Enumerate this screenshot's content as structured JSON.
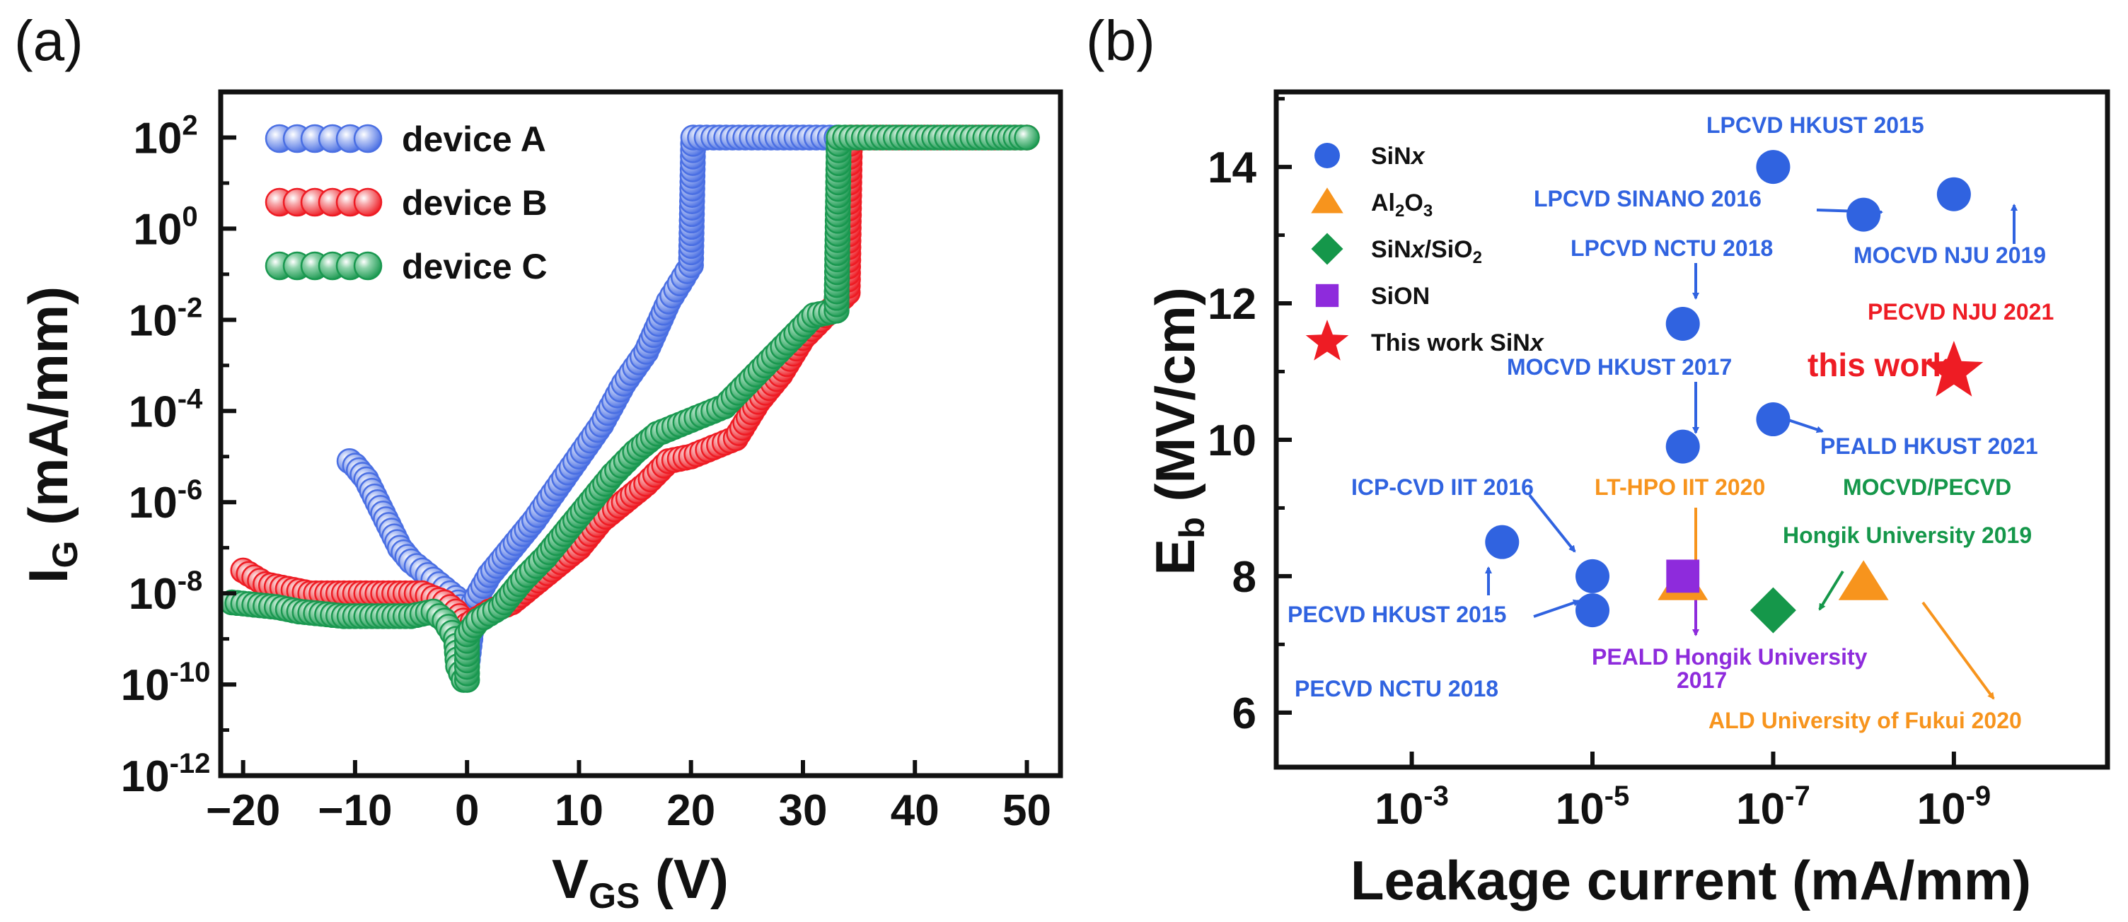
{
  "colors": {
    "device_a": "#4a6fe3",
    "device_b": "#ee1c24",
    "device_c": "#1a9850",
    "sinx": "#3063e0",
    "al2o3": "#f7941d",
    "sinx_sio2": "#15974a",
    "sion": "#8e2bdc",
    "this_work": "#ee1c24",
    "axis": "#111111"
  },
  "chart_data": [
    {
      "panel": "(a)",
      "type": "line",
      "xlabel": {
        "main": "V",
        "sub": "GS",
        "rest": " (V)"
      },
      "ylabel": {
        "main": "I",
        "sub": "G",
        "rest": " (mA/mm)"
      },
      "xlim": [
        -22,
        53
      ],
      "ylim_log10": [
        -12,
        3
      ],
      "yscale": "log",
      "x_ticks": [
        "−20",
        "−10",
        "0",
        "10",
        "20",
        "30",
        "40",
        "50"
      ],
      "x_tick_values": [
        -20,
        -10,
        0,
        10,
        20,
        30,
        40,
        50
      ],
      "y_ticks_exp": [
        "2",
        "0",
        "-2",
        "-4",
        "-6",
        "-8",
        "-10",
        "-12"
      ],
      "y_tick_exp_values": [
        2,
        0,
        -2,
        -4,
        -6,
        -8,
        -10,
        -12
      ],
      "y_tick_base": "10",
      "legend": [
        "device A",
        "device B",
        "device C"
      ],
      "series": [
        {
          "name": "device A",
          "color_key": "device_a",
          "points_log10": [
            [
              -10.5,
              -5.1
            ],
            [
              -10,
              -5.2
            ],
            [
              -9,
              -5.5
            ],
            [
              -8,
              -6.0
            ],
            [
              -7,
              -6.5
            ],
            [
              -6,
              -7.0
            ],
            [
              -5,
              -7.3
            ],
            [
              -4,
              -7.5
            ],
            [
              -3,
              -7.7
            ],
            [
              -2,
              -7.9
            ],
            [
              -1,
              -8.1
            ],
            [
              -0.6,
              -8.3
            ],
            [
              -0.3,
              -9.0
            ],
            [
              0,
              -9.6
            ],
            [
              0.3,
              -9.0
            ],
            [
              0.6,
              -8.2
            ],
            [
              2,
              -7.6
            ],
            [
              4,
              -7.0
            ],
            [
              6,
              -6.4
            ],
            [
              8,
              -5.7
            ],
            [
              10,
              -5.0
            ],
            [
              12,
              -4.3
            ],
            [
              14,
              -3.4
            ],
            [
              16,
              -2.7
            ],
            [
              18,
              -1.6
            ],
            [
              19,
              -1.2
            ],
            [
              20,
              -0.8
            ],
            [
              20.2,
              2.0
            ],
            [
              22,
              2.0
            ],
            [
              26,
              2.0
            ],
            [
              30,
              2.0
            ],
            [
              33,
              2.0
            ]
          ]
        },
        {
          "name": "device B",
          "color_key": "device_b",
          "points_log10": [
            [
              -20,
              -7.5
            ],
            [
              -18,
              -7.8
            ],
            [
              -16,
              -7.9
            ],
            [
              -14,
              -8.0
            ],
            [
              -12,
              -8.0
            ],
            [
              -10,
              -8.0
            ],
            [
              -8,
              -8.0
            ],
            [
              -6,
              -8.0
            ],
            [
              -4,
              -8.0
            ],
            [
              -2,
              -8.2
            ],
            [
              -1,
              -8.4
            ],
            [
              0,
              -8.7
            ],
            [
              2,
              -8.4
            ],
            [
              4,
              -8.2
            ],
            [
              6,
              -7.8
            ],
            [
              8,
              -7.4
            ],
            [
              10,
              -7.0
            ],
            [
              12,
              -6.4
            ],
            [
              14,
              -6.0
            ],
            [
              16,
              -5.6
            ],
            [
              18,
              -5.1
            ],
            [
              20,
              -5.0
            ],
            [
              22,
              -4.8
            ],
            [
              24,
              -4.6
            ],
            [
              26,
              -3.8
            ],
            [
              28,
              -3.2
            ],
            [
              30,
              -2.4
            ],
            [
              32,
              -1.9
            ],
            [
              34,
              -1.4
            ],
            [
              34.2,
              2.0
            ],
            [
              38,
              2.0
            ],
            [
              42,
              2.0
            ],
            [
              46,
              2.0
            ],
            [
              50,
              2.0
            ]
          ]
        },
        {
          "name": "device C",
          "color_key": "device_c",
          "points_log10": [
            [
              -21,
              -8.2
            ],
            [
              -19,
              -8.25
            ],
            [
              -17,
              -8.3
            ],
            [
              -15,
              -8.4
            ],
            [
              -13,
              -8.45
            ],
            [
              -11,
              -8.5
            ],
            [
              -9,
              -8.5
            ],
            [
              -7,
              -8.5
            ],
            [
              -5,
              -8.5
            ],
            [
              -3,
              -8.4
            ],
            [
              -2,
              -8.6
            ],
            [
              -1,
              -9.0
            ],
            [
              -0.8,
              -9.6
            ],
            [
              -0.3,
              -9.9
            ],
            [
              0,
              -9.9
            ],
            [
              0,
              -8.9
            ],
            [
              1,
              -8.6
            ],
            [
              3,
              -8.3
            ],
            [
              5,
              -7.7
            ],
            [
              7,
              -7.2
            ],
            [
              9,
              -6.6
            ],
            [
              11,
              -6.0
            ],
            [
              13,
              -5.4
            ],
            [
              15,
              -4.9
            ],
            [
              17,
              -4.5
            ],
            [
              19,
              -4.3
            ],
            [
              21,
              -4.1
            ],
            [
              23,
              -3.9
            ],
            [
              25,
              -3.4
            ],
            [
              27,
              -2.9
            ],
            [
              29,
              -2.4
            ],
            [
              31,
              -1.9
            ],
            [
              33,
              -1.8
            ],
            [
              33.2,
              2.0
            ],
            [
              36,
              2.0
            ],
            [
              40,
              2.0
            ],
            [
              44,
              2.0
            ],
            [
              48,
              2.0
            ],
            [
              50,
              2.0
            ]
          ]
        }
      ]
    },
    {
      "panel": "(b)",
      "type": "scatter",
      "xlabel": "Leakage current (mA/mm)",
      "ylabel": {
        "main": "E",
        "sub": "b",
        "rest": " (MV/cm)"
      },
      "xscale": "log",
      "x_reversed": true,
      "xlim_log10": [
        -1.5,
        -10.7
      ],
      "ylim": [
        5.2,
        15.1
      ],
      "x_ticks_exp": [
        "-3",
        "-5",
        "-7",
        "-9"
      ],
      "x_tick_exp_values": [
        -3,
        -5,
        -7,
        -9
      ],
      "x_tick_base": "10",
      "y_ticks": [
        "6",
        "8",
        "10",
        "12",
        "14"
      ],
      "y_tick_values": [
        6,
        8,
        10,
        12,
        14
      ],
      "legend": [
        {
          "label": "SiNx",
          "marker": "circle",
          "color_key": "sinx"
        },
        {
          "label": "Al2O3",
          "marker": "triangle",
          "color_key": "al2o3"
        },
        {
          "label": "SiNx/SiO2",
          "marker": "diamond",
          "color_key": "sinx_sio2"
        },
        {
          "label": "SiON",
          "marker": "square",
          "color_key": "sion"
        },
        {
          "label": "This work SiNx",
          "marker": "star",
          "color_key": "this_work"
        }
      ],
      "points": [
        {
          "name": "LPCVD HKUST 2015",
          "x_log10": -7,
          "y": 14.0,
          "marker": "circle",
          "color_key": "sinx"
        },
        {
          "name": "LPCVD SINANO 2016",
          "x_log10": -8,
          "y": 13.3,
          "marker": "circle",
          "color_key": "sinx"
        },
        {
          "name": "MOCVD NJU 2019",
          "x_log10": -9,
          "y": 13.6,
          "marker": "circle",
          "color_key": "sinx"
        },
        {
          "name": "LPCVD NCTU 2018",
          "x_log10": -6,
          "y": 11.7,
          "marker": "circle",
          "color_key": "sinx"
        },
        {
          "name": "MOCVD HKUST 2017",
          "x_log10": -6,
          "y": 9.9,
          "marker": "circle",
          "color_key": "sinx"
        },
        {
          "name": "PEALD HKUST 2021",
          "x_log10": -7,
          "y": 10.3,
          "marker": "circle",
          "color_key": "sinx"
        },
        {
          "name": "PECVD HKUST 2015",
          "x_log10": -4,
          "y": 8.5,
          "marker": "circle",
          "color_key": "sinx"
        },
        {
          "name": "ICP-CVD IIT 2016",
          "x_log10": -5,
          "y": 8.0,
          "marker": "circle",
          "color_key": "sinx"
        },
        {
          "name": "PECVD NCTU 2018",
          "x_log10": -5,
          "y": 7.5,
          "marker": "circle",
          "color_key": "sinx"
        },
        {
          "name": "LT-HPO IIT 2020",
          "x_log10": -6,
          "y": 7.9,
          "marker": "triangle",
          "color_key": "al2o3"
        },
        {
          "name": "PEALD Hongik University 2017",
          "x_log10": -6,
          "y": 8.0,
          "marker": "square",
          "color_key": "sion"
        },
        {
          "name": "MOCVD/PECVD Hongik University 2019",
          "x_log10": -7,
          "y": 7.5,
          "marker": "diamond",
          "color_key": "sinx_sio2"
        },
        {
          "name": "ALD University of Fukui 2020",
          "x_log10": -8,
          "y": 7.9,
          "marker": "triangle",
          "color_key": "al2o3"
        },
        {
          "name": "PECVD NJU 2021",
          "x_log10": -9,
          "y": 11.0,
          "marker": "star",
          "color_key": "this_work"
        }
      ],
      "annotations": {
        "lpcvd_hkust_2015": "LPCVD HKUST 2015",
        "lpcvd_sinano_2016": "LPCVD SINANO 2016",
        "mocvd_nju_2019": "MOCVD NJU 2019",
        "lpcvd_nctu_2018": "LPCVD NCTU 2018",
        "pecvd_nju_2021": "PECVD NJU 2021",
        "this_work": "this work",
        "mocvd_hkust_2017": "MOCVD HKUST 2017",
        "peald_hkust_2021": "PEALD HKUST 2021",
        "icp_cvd_iit_2016": "ICP-CVD IIT 2016",
        "lt_hpo_iit_2020": "LT-HPO IIT 2020",
        "mocvd_pecvd": "MOCVD/PECVD",
        "hongik_2019": "Hongik University 2019",
        "pecvd_hkust_2015": "PECVD HKUST 2015",
        "peald_hongik": "PEALD Hongik University",
        "peald_hongik_year": "2017",
        "pecvd_nctu_2018": "PECVD NCTU 2018",
        "ald_fukui_2020": "ALD University of Fukui 2020"
      }
    }
  ]
}
